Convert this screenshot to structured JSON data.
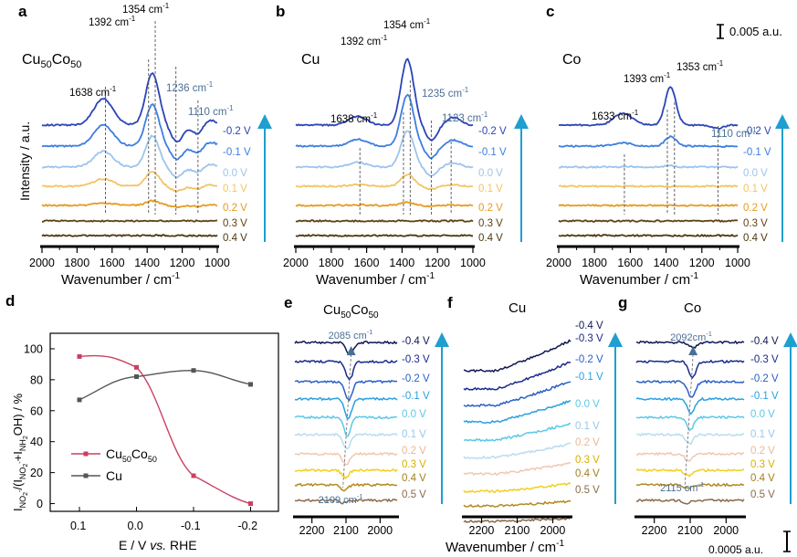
{
  "scale_bar_top": "0.005 a.u.",
  "scale_bar_bottom": "0.0005 a.u.",
  "colors": {
    "v-0.4": "#101852",
    "v-0.3": "#1a2a8a",
    "v-0.2": "#2a45b8",
    "v-0.1": "#3d7ee0",
    "v0.0": "#9cc4ec",
    "v0.1": "#f2c462",
    "v0.2": "#e89a20",
    "v0.3": "#5f4210",
    "v0.4": "#4d3810",
    "v0.5": "#8a6a4a",
    "arrow": "#1e9fd0",
    "annot": "#4a6f96",
    "cu": "#555555",
    "cucoline": "#c94060"
  },
  "chart_data": [
    {
      "id": "a",
      "panel_label": "a",
      "type": "line",
      "title_main": "Cu",
      "title_sub1": "50",
      "title_mid": "Co",
      "title_sub2": "50",
      "xlabel": "Wavenumber / cm",
      "xlabel_sup": "-1",
      "ylabel": "Intensity / a.u.",
      "xlim": [
        2000,
        1000
      ],
      "xticks": [
        2000,
        1800,
        1600,
        1400,
        1200,
        1000
      ],
      "potentials": [
        "-0.2 V",
        "-0.1 V",
        "0.0 V",
        "0.1 V",
        "0.2 V",
        "0.3 V",
        "0.4 V"
      ],
      "peaks": [
        {
          "label": "1638 cm",
          "sup": "-1",
          "wn": 1638,
          "color": "black"
        },
        {
          "label": "1392 cm",
          "sup": "-1",
          "wn": 1392,
          "color": "black"
        },
        {
          "label": "1354 cm",
          "sup": "-1",
          "wn": 1354,
          "color": "black"
        },
        {
          "label": "1236 cm",
          "sup": "-1",
          "wn": 1236,
          "color": "annot"
        },
        {
          "label": "1110 cm",
          "sup": "-1",
          "wn": 1110,
          "color": "annot"
        }
      ]
    },
    {
      "id": "b",
      "panel_label": "b",
      "type": "line",
      "title_main": "Cu",
      "xlabel": "Wavenumber / cm",
      "xlabel_sup": "-1",
      "xlim": [
        2000,
        1000
      ],
      "xticks": [
        2000,
        1800,
        1600,
        1400,
        1200,
        1000
      ],
      "potentials": [
        "-0.2 V",
        "-0.1 V",
        "0.0 V",
        "0.1 V",
        "0.2 V",
        "0.3 V",
        "0.4 V"
      ],
      "peaks": [
        {
          "label": "1638 cm",
          "sup": "-1",
          "wn": 1638,
          "color": "black"
        },
        {
          "label": "1392 cm",
          "sup": "-1",
          "wn": 1392,
          "color": "black"
        },
        {
          "label": "1354 cm",
          "sup": "-1",
          "wn": 1354,
          "color": "black"
        },
        {
          "label": "1235 cm",
          "sup": "-1",
          "wn": 1235,
          "color": "annot"
        },
        {
          "label": "1123 cm",
          "sup": "-1",
          "wn": 1123,
          "color": "annot"
        }
      ]
    },
    {
      "id": "c",
      "panel_label": "c",
      "type": "line",
      "title_main": "Co",
      "xlabel": "Wavenumber / cm",
      "xlabel_sup": "-1",
      "xlim": [
        2000,
        1000
      ],
      "xticks": [
        2000,
        1800,
        1600,
        1400,
        1200,
        1000
      ],
      "potentials": [
        "-0.2 V",
        "-0.1 V",
        "0.0 V",
        "0.1 V",
        "0.2 V",
        "0.3 V",
        "0.4 V"
      ],
      "peaks": [
        {
          "label": "1633 cm",
          "sup": "-1",
          "wn": 1633,
          "color": "black"
        },
        {
          "label": "1393 cm",
          "sup": "-1",
          "wn": 1393,
          "color": "black"
        },
        {
          "label": "1353 cm",
          "sup": "-1",
          "wn": 1353,
          "color": "black"
        },
        {
          "label": "1110 cm",
          "sup": "-1",
          "wn": 1110,
          "color": "annot"
        }
      ]
    },
    {
      "id": "d",
      "panel_label": "d",
      "type": "line",
      "xlabel": "E / V vs. RHE",
      "xlabel_pre": "E / V ",
      "xlabel_it": "vs.",
      "xlabel_post": " RHE",
      "ylabel": "I(NO2-)/(I(NO2-)+I(NH2OH)) / %",
      "ylabel_parts": [
        "I",
        "NO",
        "2",
        "-",
        "/(I",
        "NO",
        "2",
        "-",
        "+I",
        "NH",
        "2",
        "OH",
        ") / %"
      ],
      "x_categories": [
        "0.1",
        "0.0",
        "-0.1",
        "-0.2"
      ],
      "ylim": [
        -5,
        110
      ],
      "yticks": [
        0,
        20,
        40,
        60,
        80,
        100
      ],
      "series": [
        {
          "name": "Cu50Co50",
          "name_main": "Cu",
          "name_sub1": "50",
          "name_mid": "Co",
          "name_sub2": "50",
          "values": [
            95,
            88,
            18,
            0
          ]
        },
        {
          "name": "Cu",
          "values": [
            67,
            82,
            86,
            77
          ]
        }
      ]
    },
    {
      "id": "e",
      "panel_label": "e",
      "type": "line",
      "title_main": "Cu",
      "title_sub1": "50",
      "title_mid": "Co",
      "title_sub2": "50",
      "xlim": [
        2250,
        1950
      ],
      "xticks": [
        2200,
        2100,
        2000
      ],
      "potentials": [
        "-0.4 V",
        "-0.3 V",
        "-0.2 V",
        "-0.1 V",
        "0.0 V",
        "0.1 V",
        "0.2 V",
        "0.3 V",
        "0.4 V",
        "0.5 V"
      ],
      "peaks": [
        {
          "label": "2085 cm",
          "sup": "-1",
          "wn": 2085
        },
        {
          "label": "2109 cm",
          "sup": "-1",
          "wn": 2109
        }
      ]
    },
    {
      "id": "f",
      "panel_label": "f",
      "type": "line",
      "title_main": "Cu",
      "xlabel": "Wavenumber / cm",
      "xlabel_sup": "-1",
      "xlim": [
        2250,
        1950
      ],
      "xticks": [
        2200,
        2100,
        2000
      ],
      "potentials": [
        "-0.4 V",
        "-0.3 V",
        "-0.2 V",
        "-0.1 V",
        "0.0 V",
        "0.1 V",
        "0.2 V",
        "0.3 V",
        "0.4 V",
        "0.5 V"
      ]
    },
    {
      "id": "g",
      "panel_label": "g",
      "type": "line",
      "title_main": "Co",
      "xlim": [
        2250,
        1950
      ],
      "xticks": [
        2200,
        2100,
        2000
      ],
      "potentials": [
        "-0.4 V",
        "-0.3 V",
        "-0.2 V",
        "-0.1 V",
        "0.0 V",
        "0.1 V",
        "0.2 V",
        "0.3 V",
        "0.4 V",
        "0.5 V"
      ],
      "peaks": [
        {
          "label": "2092cm",
          "sup": "-1",
          "wn": 2092
        },
        {
          "label": "2115 cm",
          "sup": "-1",
          "wn": 2115
        }
      ]
    }
  ]
}
